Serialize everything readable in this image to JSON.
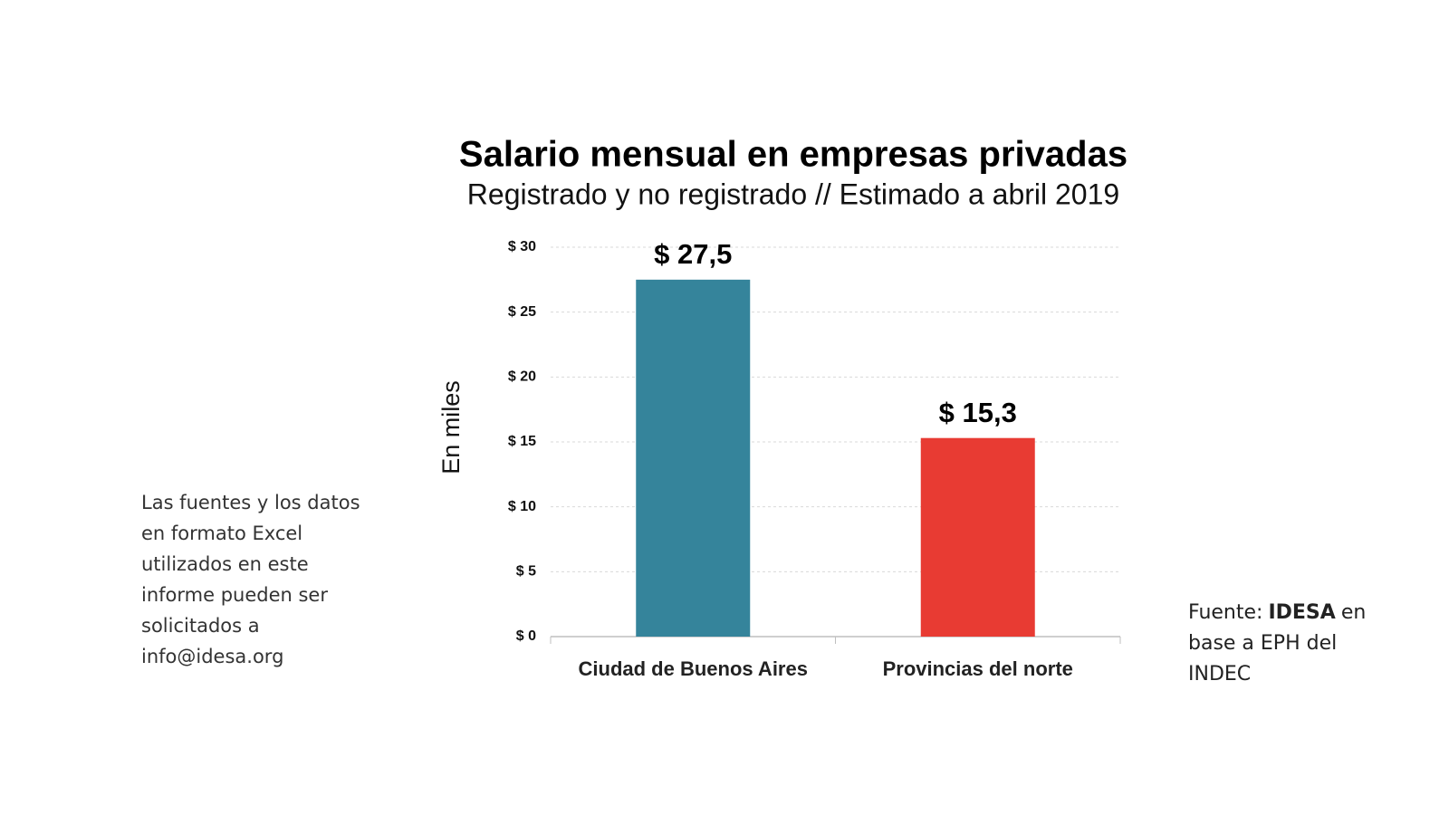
{
  "chart_data": {
    "type": "bar",
    "title": "Salario mensual en empresas privadas",
    "subtitle": "Registrado y no registrado // Estimado a abril 2019",
    "y_label": "En miles",
    "categories": [
      "Ciudad de Buenos Aires",
      "Provincias del norte"
    ],
    "values": [
      27.5,
      15.3
    ],
    "value_labels": [
      "$ 27,5",
      "$ 15,3"
    ],
    "colors": [
      "#35849b",
      "#e83b33"
    ],
    "ylim": [
      0,
      30
    ],
    "yticks": [
      {
        "value": 0,
        "label": "$ 0"
      },
      {
        "value": 5,
        "label": "$ 5"
      },
      {
        "value": 10,
        "label": "$ 10"
      },
      {
        "value": 15,
        "label": "$ 15"
      },
      {
        "value": 20,
        "label": "$ 20"
      },
      {
        "value": 25,
        "label": "$ 25"
      },
      {
        "value": 30,
        "label": "$ 30"
      }
    ],
    "grid": true
  },
  "note": "Las fuentes y los datos en formato Excel utilizados en este informe pueden ser solicitados a info@idesa.org",
  "source": {
    "label": "Fuente:",
    "org": "IDESA",
    "text": "en base a EPH del INDEC"
  }
}
